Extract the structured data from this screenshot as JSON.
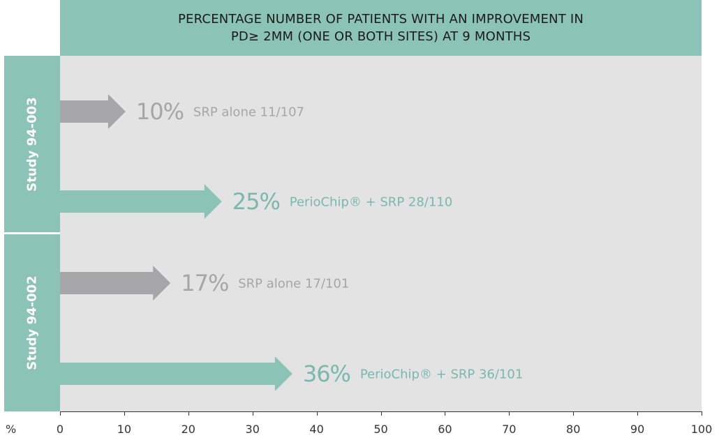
{
  "title_line1": "PERCENTAGE NUMBER OF PATIENTS WITH AN IMPROVEMENT IN",
  "title_line2": "PD≥ 2MM (ONE OR BOTH SITES) AT 9 MONTHS",
  "unit_label": "%",
  "colors": {
    "control": "#a6a6a8",
    "treatment": "#8bc3b6",
    "header": "#8bc3b6",
    "background": "#e3e3e3"
  },
  "studies": [
    {
      "label": "Study 94-003"
    },
    {
      "label": "Study 94-002"
    }
  ],
  "chart_data": {
    "type": "bar",
    "orientation": "horizontal",
    "xlim": [
      0,
      100
    ],
    "ticks": [
      0,
      10,
      20,
      30,
      40,
      50,
      60,
      70,
      80,
      90,
      100
    ],
    "bars": [
      {
        "study": "Study 94-003",
        "pct_label": "10%",
        "desc": "SRP alone  11/107",
        "value": 10,
        "group": "control"
      },
      {
        "study": "Study 94-003",
        "pct_label": "25%",
        "desc": "PerioChip® + SRP  28/110",
        "value": 25,
        "group": "treatment"
      },
      {
        "study": "Study 94-002",
        "pct_label": "17%",
        "desc": "SRP alone  17/101",
        "value": 17,
        "group": "control"
      },
      {
        "study": "Study 94-002",
        "pct_label": "36%",
        "desc": "PerioChip® + SRP  36/101",
        "value": 36,
        "group": "treatment"
      }
    ]
  }
}
